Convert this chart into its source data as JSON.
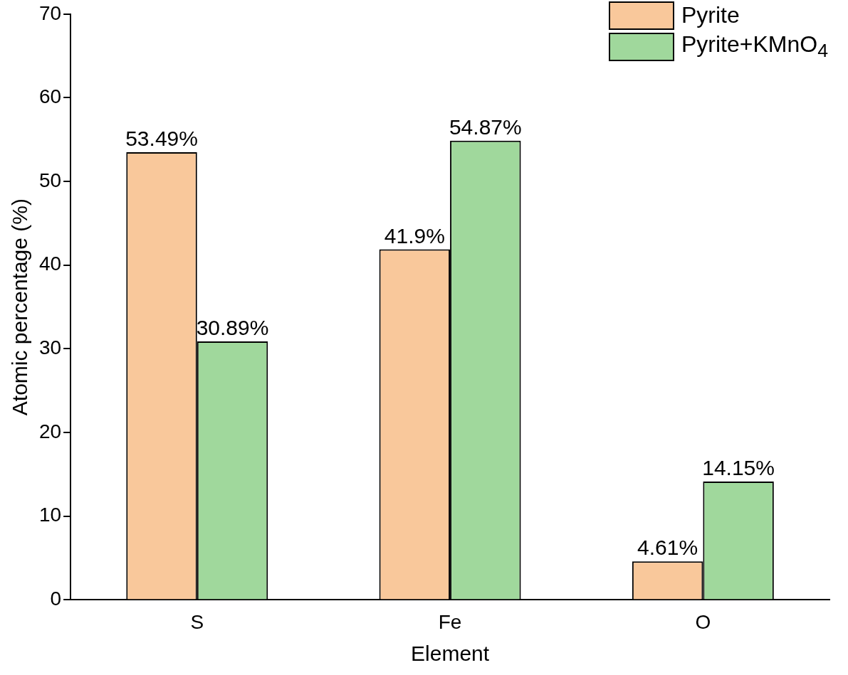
{
  "chart_data": {
    "type": "bar",
    "xlabel": "Element",
    "ylabel": "Atomic percentage (%)",
    "categories": [
      "S",
      "Fe",
      "O"
    ],
    "series": [
      {
        "name": "Pyrite",
        "color": "#f9c89b",
        "values": [
          53.49,
          41.9,
          4.61
        ],
        "value_labels": [
          "53.49%",
          "41.9%",
          "4.61%"
        ]
      },
      {
        "name": "Pyrite+KMnO$_{4}$",
        "color": "#a0d89c",
        "values": [
          30.89,
          54.87,
          14.15
        ],
        "value_labels": [
          "30.89%",
          "54.87%",
          "14.15%"
        ]
      }
    ],
    "ylim": [
      0,
      70
    ],
    "yticks": [
      0,
      10,
      20,
      30,
      40,
      50,
      60,
      70
    ],
    "grid": false,
    "legend": "top right"
  }
}
